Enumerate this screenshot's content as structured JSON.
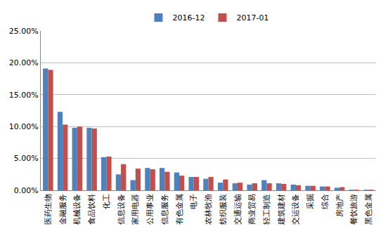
{
  "chart_data": {
    "type": "bar",
    "categories": [
      "医药生物",
      "金融服务",
      "机械设备",
      "食品饮料",
      "化工",
      "信息设备",
      "家用电器",
      "公用事业",
      "信息服务",
      "有色金属",
      "电子",
      "农林牧渔",
      "纺织服装",
      "交通运输",
      "商业贸易",
      "轻工制造",
      "建筑建材",
      "交运设备",
      "采掘",
      "综合",
      "房地产",
      "餐饮旅游",
      "黑色金属"
    ],
    "series": [
      {
        "name": "2016-12",
        "color": "#4f81bd",
        "values": [
          19.1,
          12.3,
          9.8,
          9.8,
          5.2,
          2.5,
          1.6,
          3.5,
          3.5,
          2.8,
          2.1,
          1.8,
          1.2,
          1.1,
          0.9,
          1.6,
          1.1,
          0.9,
          0.7,
          0.6,
          0.4,
          0.1,
          0.1
        ]
      },
      {
        "name": "2017-01",
        "color": "#c0504d",
        "values": [
          18.9,
          10.3,
          10.0,
          9.7,
          5.3,
          4.1,
          3.4,
          3.3,
          2.9,
          2.3,
          2.1,
          2.1,
          1.7,
          1.2,
          1.1,
          1.1,
          1.0,
          0.8,
          0.7,
          0.6,
          0.5,
          0.1,
          0.1
        ]
      }
    ],
    "ylim": [
      0,
      25
    ],
    "yticks": [
      {
        "value": 0,
        "label": "0.00%"
      },
      {
        "value": 5,
        "label": "5.00%"
      },
      {
        "value": 10,
        "label": "10.00%"
      },
      {
        "value": 15,
        "label": "15.00%"
      },
      {
        "value": 20,
        "label": "20.00%"
      },
      {
        "value": 25,
        "label": "25.00%"
      }
    ],
    "grid": true,
    "legend": "top"
  }
}
